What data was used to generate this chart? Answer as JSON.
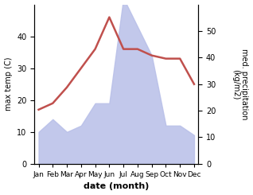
{
  "months": [
    "Jan",
    "Feb",
    "Mar",
    "Apr",
    "May",
    "Jun",
    "Jul",
    "Aug",
    "Sep",
    "Oct",
    "Nov",
    "Dec"
  ],
  "temp": [
    17,
    19,
    24,
    30,
    36,
    46,
    36,
    36,
    34,
    33,
    33,
    25
  ],
  "precip": [
    10,
    14,
    10,
    12,
    19,
    19,
    52,
    43,
    34,
    12,
    12,
    9
  ],
  "temp_color": "#c0504d",
  "precip_fill_color": "#b8bfe8",
  "ylabel_left": "max temp (C)",
  "ylabel_right": "med. precipitation\n(kg/m2)",
  "xlabel": "date (month)",
  "ylim_left": [
    0,
    50
  ],
  "ylim_right": [
    0,
    60
  ],
  "yticks_left": [
    0,
    10,
    20,
    30,
    40
  ],
  "yticks_right": [
    0,
    10,
    20,
    30,
    40,
    50
  ],
  "background_color": "#ffffff",
  "temp_linewidth": 1.8,
  "xlabel_fontsize": 8,
  "ylabel_fontsize": 7,
  "tick_fontsize": 7,
  "xtick_fontsize": 6.5
}
